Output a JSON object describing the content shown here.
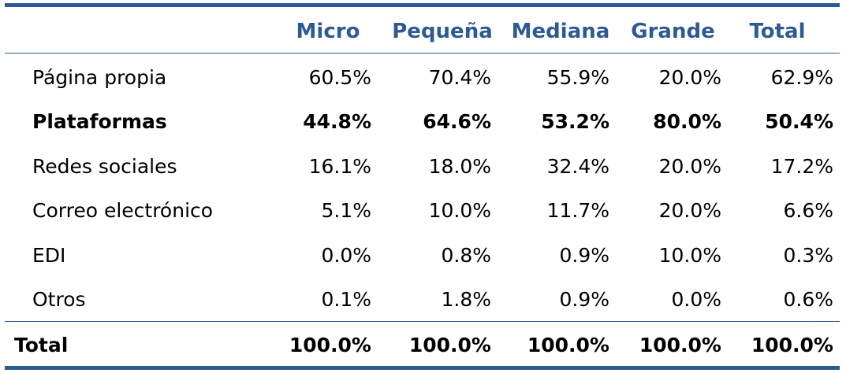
{
  "table": {
    "columns": [
      "Micro",
      "Pequeña",
      "Mediana",
      "Grande",
      "Total"
    ],
    "rows": [
      {
        "label": "Página propia",
        "values": [
          "60.5%",
          "70.4%",
          "55.9%",
          "20.0%",
          "62.9%"
        ]
      },
      {
        "label": "Plataformas",
        "values": [
          "44.8%",
          "64.6%",
          "53.2%",
          "80.0%",
          "50.4%"
        ]
      },
      {
        "label": "Redes sociales",
        "values": [
          "16.1%",
          "18.0%",
          "32.4%",
          "20.0%",
          "17.2%"
        ]
      },
      {
        "label": "Correo electrónico",
        "values": [
          "5.1%",
          "10.0%",
          "11.7%",
          "20.0%",
          "6.6%"
        ]
      },
      {
        "label": "EDI",
        "values": [
          "0.0%",
          "0.8%",
          "0.9%",
          "10.0%",
          "0.3%"
        ]
      },
      {
        "label": "Otros",
        "values": [
          "0.1%",
          "1.8%",
          "0.9%",
          "0.0%",
          "0.6%"
        ]
      }
    ],
    "total": {
      "label": "Total",
      "values": [
        "100.0%",
        "100.0%",
        "100.0%",
        "100.0%",
        "100.0%"
      ]
    }
  },
  "colors": {
    "header": "#2e5a93",
    "rule": "#2e5a93"
  }
}
